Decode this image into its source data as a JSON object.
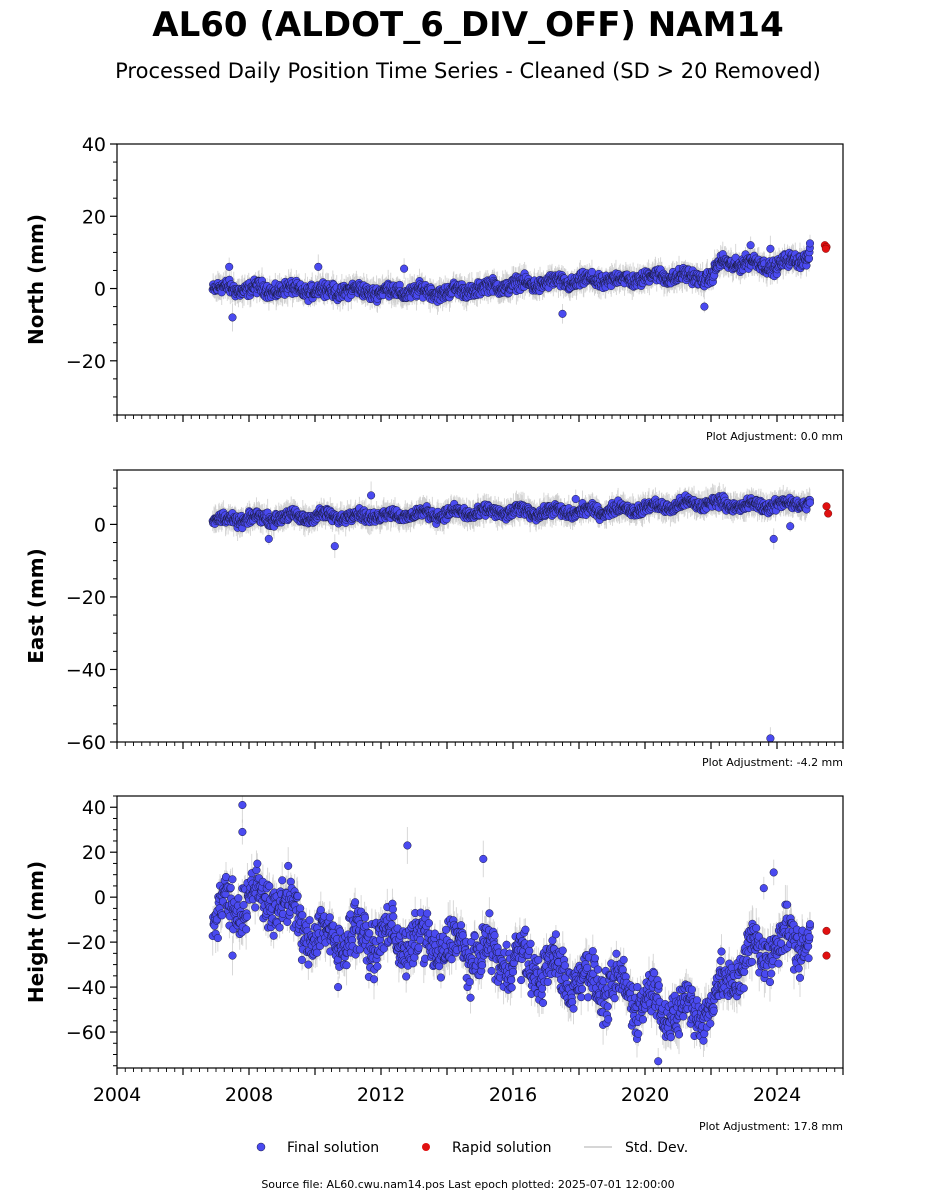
{
  "title": "AL60 (ALDOT_6_DIV_OFF) NAM14",
  "subtitle": "Processed Daily Position Time Series - Cleaned (SD > 20 Removed)",
  "chart_data": [
    {
      "type": "scatter",
      "ylabel": "North (mm)",
      "ylim": [
        -35,
        40
      ],
      "yticks": [
        -20,
        0,
        20,
        40
      ],
      "xlim": [
        2004,
        2026
      ],
      "adjustment": "Plot Adjustment: 0.0 mm",
      "trend": [
        [
          2006.9,
          0
        ],
        [
          2010,
          -0.5
        ],
        [
          2014,
          -1
        ],
        [
          2016,
          1
        ],
        [
          2018,
          2
        ],
        [
          2019.5,
          2.5
        ],
        [
          2020.5,
          3.5
        ],
        [
          2022,
          3
        ],
        [
          2022.3,
          7
        ],
        [
          2023.5,
          7
        ],
        [
          2024,
          6
        ],
        [
          2024.5,
          8
        ],
        [
          2025,
          9
        ]
      ],
      "noise": 1.6,
      "outliers": [
        [
          2007.5,
          -8
        ],
        [
          2007.4,
          6
        ],
        [
          2010.1,
          6
        ],
        [
          2012.7,
          5.5
        ],
        [
          2017.5,
          -7
        ],
        [
          2021.8,
          -5
        ],
        [
          2023.2,
          12
        ],
        [
          2023.8,
          11
        ]
      ],
      "final_end": [
        2025.0,
        12.5
      ],
      "rapid": [
        [
          2025.45,
          12
        ],
        [
          2025.5,
          11.5
        ],
        [
          2025.48,
          11
        ]
      ]
    },
    {
      "type": "scatter",
      "ylabel": "East (mm)",
      "ylim": [
        -60,
        15
      ],
      "yticks": [
        -60,
        -40,
        -20,
        0
      ],
      "xlim": [
        2004,
        2026
      ],
      "adjustment": "Plot Adjustment: -4.2 mm",
      "trend": [
        [
          2006.9,
          1
        ],
        [
          2009,
          2
        ],
        [
          2012,
          2.5
        ],
        [
          2014,
          3
        ],
        [
          2016,
          3.5
        ],
        [
          2018,
          3.5
        ],
        [
          2020,
          4.5
        ],
        [
          2022,
          6
        ],
        [
          2023,
          5
        ],
        [
          2025,
          6
        ]
      ],
      "noise": 1.3,
      "outliers": [
        [
          2008.6,
          -4
        ],
        [
          2010.6,
          -6
        ],
        [
          2011.7,
          8
        ],
        [
          2023.9,
          -4
        ],
        [
          2023.8,
          -59
        ],
        [
          2024.4,
          -0.5
        ],
        [
          2017.9,
          7
        ]
      ],
      "final_end": [
        2025.0,
        6
      ],
      "rapid": [
        [
          2025.5,
          5
        ],
        [
          2025.55,
          3
        ]
      ]
    },
    {
      "type": "scatter",
      "ylabel": "Height (mm)",
      "ylim": [
        -76,
        45
      ],
      "yticks": [
        -60,
        -40,
        -20,
        0,
        20,
        40
      ],
      "xlim": [
        2004,
        2026
      ],
      "xticks": [
        2004,
        2008,
        2012,
        2016,
        2020,
        2024
      ],
      "adjustment": "Plot Adjustment: 17.8 mm",
      "trend": [
        [
          2006.9,
          -8
        ],
        [
          2008,
          0
        ],
        [
          2009,
          -2
        ],
        [
          2010,
          -18
        ],
        [
          2012,
          -18
        ],
        [
          2014,
          -22
        ],
        [
          2016,
          -28
        ],
        [
          2018,
          -36
        ],
        [
          2020,
          -45
        ],
        [
          2021,
          -52
        ],
        [
          2022,
          -48
        ],
        [
          2023,
          -28
        ],
        [
          2024,
          -20
        ],
        [
          2025,
          -18
        ]
      ],
      "noise": 9,
      "outliers": [
        [
          2007.8,
          41
        ],
        [
          2007.8,
          29
        ],
        [
          2012.8,
          23
        ],
        [
          2015.1,
          17
        ],
        [
          2023.9,
          11
        ],
        [
          2007.5,
          -26
        ],
        [
          2010.7,
          -40
        ],
        [
          2023.6,
          4
        ],
        [
          2020.4,
          -73
        ]
      ],
      "final_end": [
        2025.0,
        -12
      ],
      "rapid": [
        [
          2025.5,
          -15
        ],
        [
          2025.5,
          -26
        ]
      ]
    }
  ],
  "legend": {
    "final": "Final solution",
    "rapid": "Rapid solution",
    "std": "Std. Dev."
  },
  "colors": {
    "final": "#4a4af0",
    "final_edge": "#1a1a40",
    "rapid": "#e01010",
    "std": "#c8c8c8"
  },
  "footer": "Source file: AL60.cwu.nam14.pos  Last epoch plotted: 2025-07-01 12:00:00"
}
